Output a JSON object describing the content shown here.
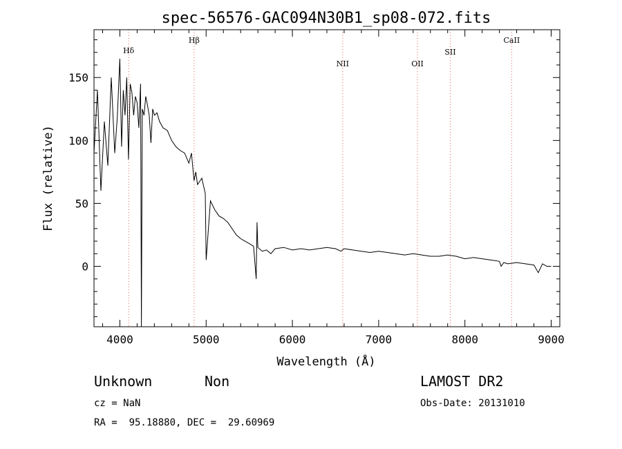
{
  "chart_data": {
    "type": "line",
    "title": "spec-56576-GAC094N30B1_sp08-072.fits",
    "xlabel": "Wavelength (Å)",
    "ylabel": "Flux (relative)",
    "xlim": [
      3700,
      9100
    ],
    "ylim": [
      -48,
      188
    ],
    "x_ticks": [
      4000,
      5000,
      6000,
      7000,
      8000,
      9000
    ],
    "y_ticks": [
      0,
      50,
      100,
      150
    ],
    "grid": false,
    "line_color": "#000000",
    "marker_color": "#e06060",
    "series": [
      {
        "x": [
          3700,
          3740,
          3780,
          3820,
          3860,
          3900,
          3940,
          3970,
          4000,
          4020,
          4040,
          4060,
          4080,
          4100,
          4120,
          4140,
          4160,
          4180,
          4200,
          4220,
          4240,
          4250,
          4260,
          4280,
          4300,
          4320,
          4340,
          4360,
          4380,
          4400,
          4430,
          4460,
          4500,
          4550,
          4600,
          4650,
          4700,
          4750,
          4800,
          4830,
          4860,
          4880,
          4900,
          4950,
          4990,
          5000,
          5050,
          5100,
          5150,
          5200,
          5250,
          5300,
          5350,
          5400,
          5450,
          5500,
          5550,
          5580,
          5590,
          5600,
          5650,
          5700,
          5750,
          5800,
          5900,
          6000,
          6100,
          6200,
          6300,
          6400,
          6500,
          6563,
          6600,
          6700,
          6800,
          6900,
          7000,
          7100,
          7200,
          7300,
          7400,
          7500,
          7600,
          7700,
          7800,
          7900,
          8000,
          8100,
          8200,
          8300,
          8400,
          8420,
          8450,
          8500,
          8600,
          8700,
          8800,
          8850,
          8900,
          8950,
          9000
        ],
        "y": [
          90,
          140,
          60,
          115,
          80,
          150,
          90,
          118,
          165,
          95,
          140,
          120,
          150,
          85,
          145,
          138,
          120,
          135,
          130,
          110,
          145,
          -48,
          125,
          120,
          135,
          128,
          120,
          98,
          125,
          120,
          122,
          115,
          110,
          108,
          100,
          95,
          92,
          90,
          82,
          90,
          68,
          75,
          65,
          70,
          58,
          5,
          52,
          45,
          40,
          38,
          35,
          30,
          25,
          22,
          20,
          18,
          16,
          -10,
          35,
          15,
          12,
          13,
          10,
          14,
          15,
          13,
          14,
          13,
          14,
          15,
          14,
          12,
          14,
          13,
          12,
          11,
          12,
          11,
          10,
          9,
          10,
          9,
          8,
          8,
          9,
          8,
          6,
          7,
          6,
          5,
          4,
          0,
          3,
          2,
          3,
          2,
          1,
          -5,
          2,
          0,
          0
        ]
      }
    ],
    "line_markers": [
      {
        "label": "Hδ",
        "x": 4102
      },
      {
        "label": "Hβ",
        "x": 4861
      },
      {
        "label": "NII",
        "x": 6583
      },
      {
        "label": "OII",
        "x": 7450
      },
      {
        "label": "SII",
        "x": 7830
      },
      {
        "label": "CaII",
        "x": 8542
      }
    ]
  },
  "info": {
    "class_text": "Unknown",
    "subclass_text": "Non",
    "survey_text": "LAMOST DR2",
    "cz_text": "cz = NaN",
    "obs_date_text": "Obs-Date: 20131010",
    "coords_text": "RA =  95.18880, DEC =  29.60969"
  }
}
